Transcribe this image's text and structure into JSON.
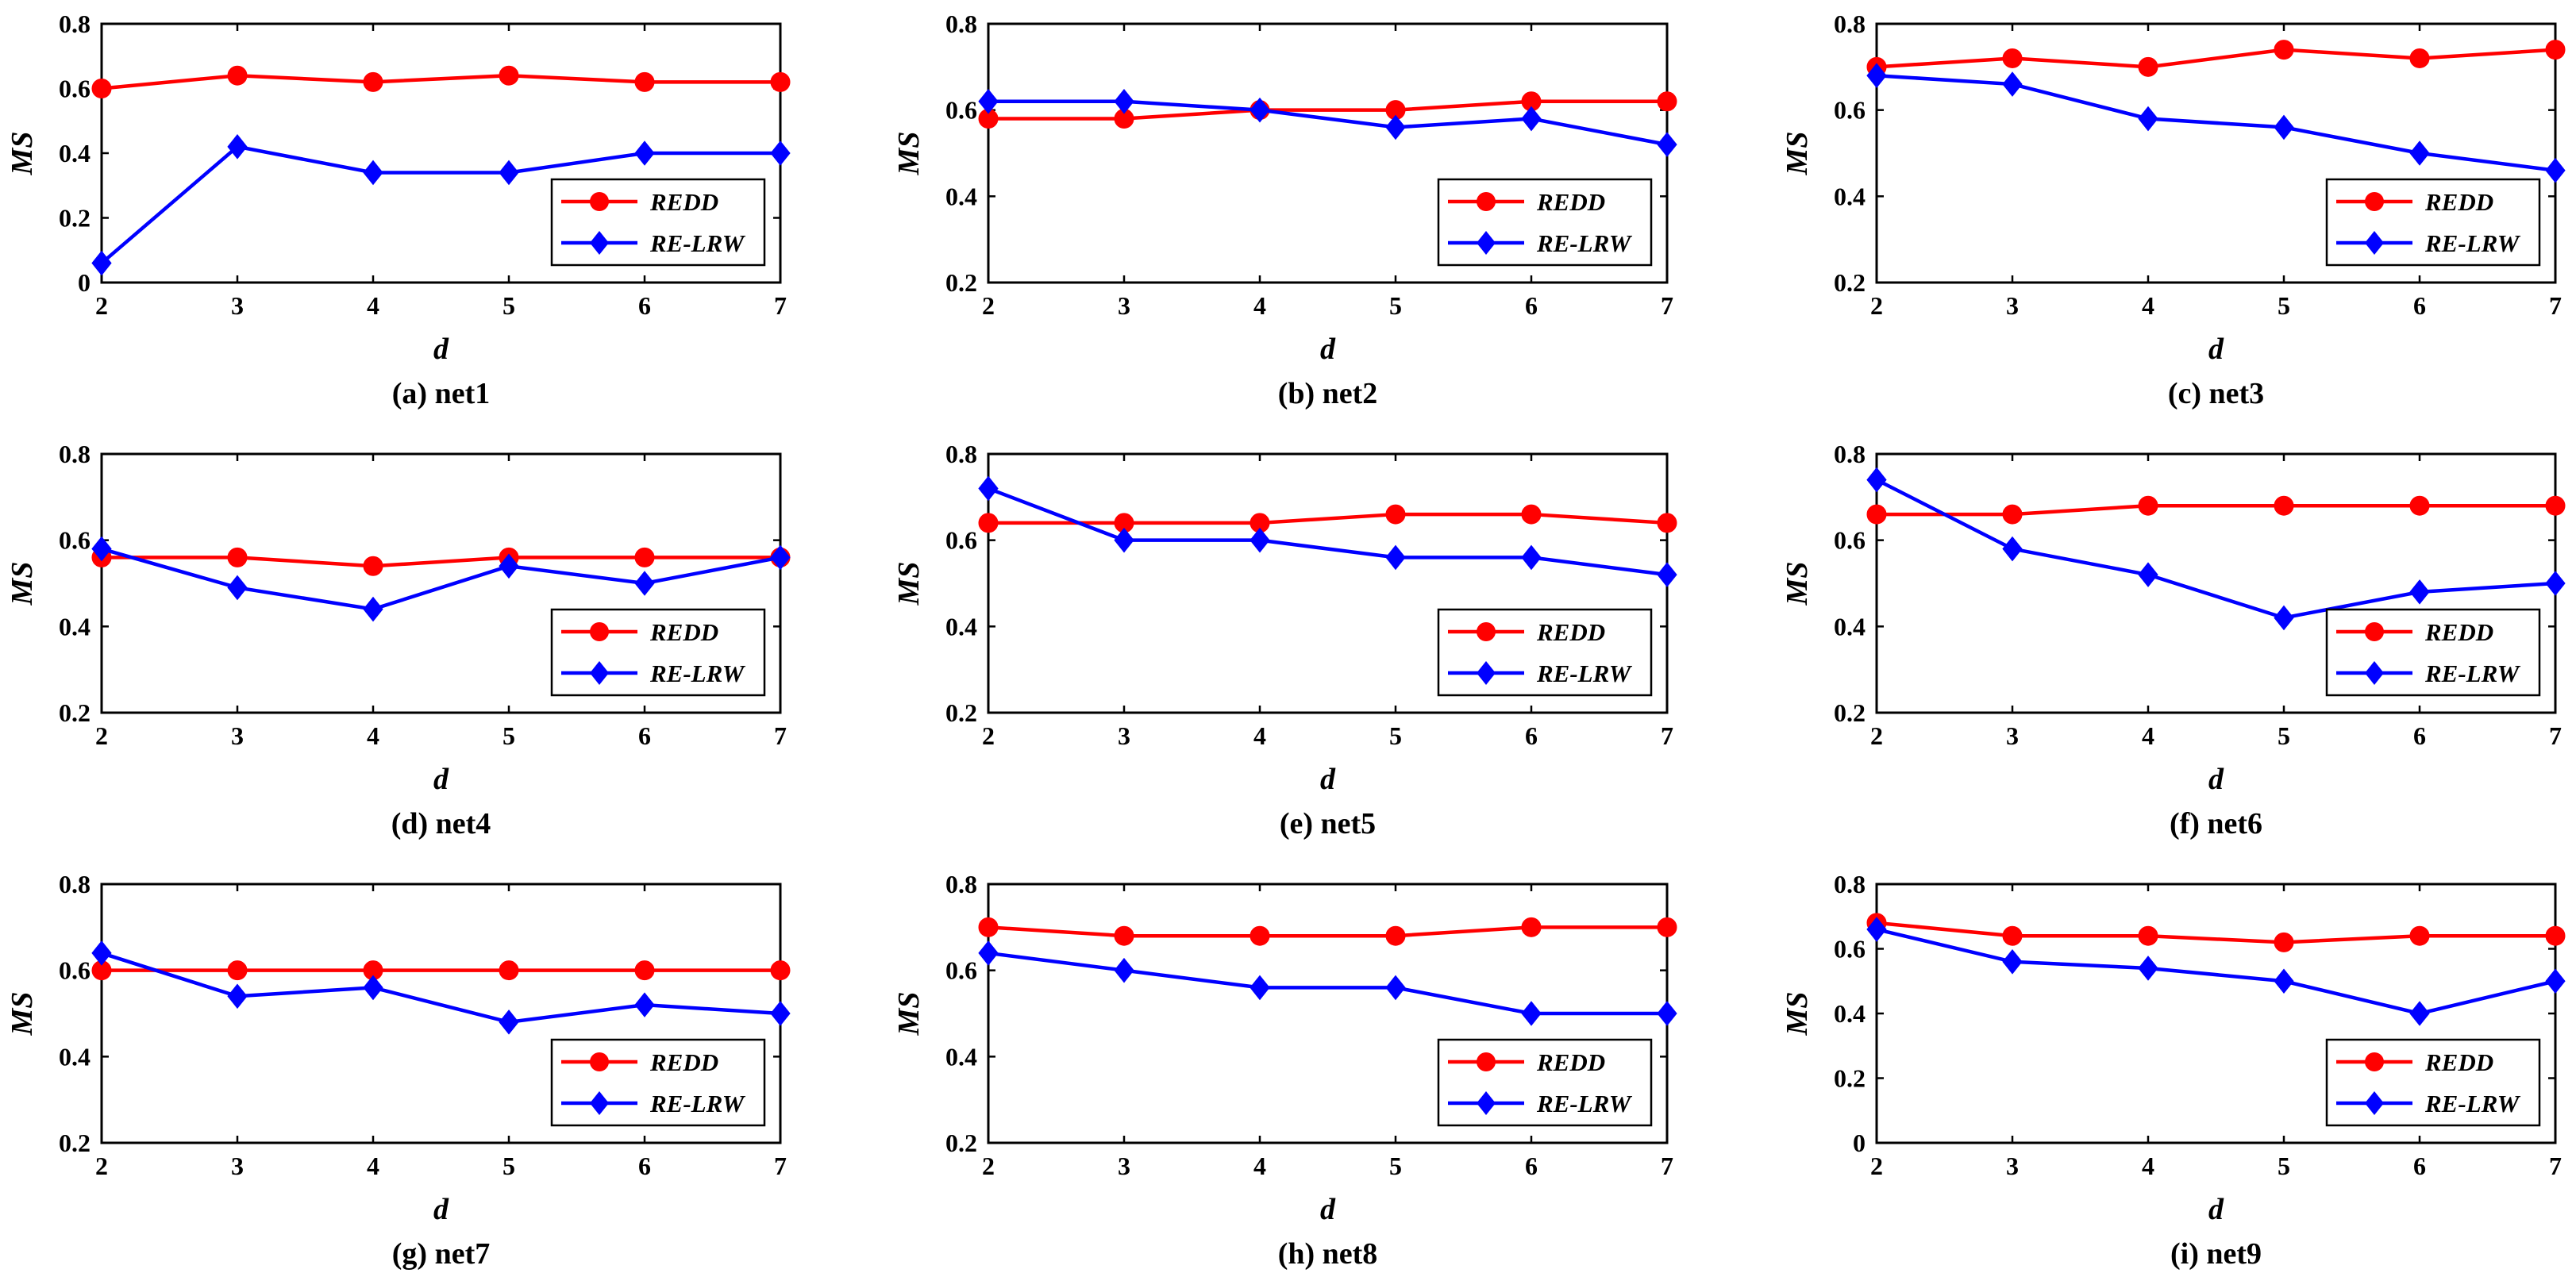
{
  "chart_data": [
    {
      "type": "line",
      "caption": "(a) net1",
      "xlabel": "d",
      "ylabel": "MS",
      "x": [
        2,
        3,
        4,
        5,
        6,
        7
      ],
      "ylim": [
        0,
        0.8
      ],
      "yticks": [
        0,
        0.2,
        0.4,
        0.6,
        0.8
      ],
      "ytick_labels": [
        "0",
        "0.2",
        "0.4",
        "0.6",
        "0.8"
      ],
      "series": [
        {
          "name": "REDD",
          "color": "#ff0000",
          "marker": "circle",
          "values": [
            0.6,
            0.64,
            0.62,
            0.64,
            0.62,
            0.62
          ]
        },
        {
          "name": "RE-LRW",
          "color": "#0000ff",
          "marker": "diamond",
          "values": [
            0.06,
            0.42,
            0.34,
            0.34,
            0.4,
            0.4
          ]
        }
      ],
      "legend": "bottom-right"
    },
    {
      "type": "line",
      "caption": "(b) net2",
      "xlabel": "d",
      "ylabel": "MS",
      "x": [
        2,
        3,
        4,
        5,
        6,
        7
      ],
      "ylim": [
        0.2,
        0.8
      ],
      "yticks": [
        0.2,
        0.4,
        0.6,
        0.8
      ],
      "ytick_labels": [
        "0.2",
        "0.4",
        "0.6",
        "0.8"
      ],
      "series": [
        {
          "name": "REDD",
          "color": "#ff0000",
          "marker": "circle",
          "values": [
            0.58,
            0.58,
            0.6,
            0.6,
            0.62,
            0.62
          ]
        },
        {
          "name": "RE-LRW",
          "color": "#0000ff",
          "marker": "diamond",
          "values": [
            0.62,
            0.62,
            0.6,
            0.56,
            0.58,
            0.52
          ]
        }
      ],
      "legend": "bottom-right"
    },
    {
      "type": "line",
      "caption": "(c) net3",
      "xlabel": "d",
      "ylabel": "MS",
      "x": [
        2,
        3,
        4,
        5,
        6,
        7
      ],
      "ylim": [
        0.2,
        0.8
      ],
      "yticks": [
        0.2,
        0.4,
        0.6,
        0.8
      ],
      "ytick_labels": [
        "0.2",
        "0.4",
        "0.6",
        "0.8"
      ],
      "series": [
        {
          "name": "REDD",
          "color": "#ff0000",
          "marker": "circle",
          "values": [
            0.7,
            0.72,
            0.7,
            0.74,
            0.72,
            0.74
          ]
        },
        {
          "name": "RE-LRW",
          "color": "#0000ff",
          "marker": "diamond",
          "values": [
            0.68,
            0.66,
            0.58,
            0.56,
            0.5,
            0.46
          ]
        }
      ],
      "legend": "bottom-right"
    },
    {
      "type": "line",
      "caption": "(d) net4",
      "xlabel": "d",
      "ylabel": "MS",
      "x": [
        2,
        3,
        4,
        5,
        6,
        7
      ],
      "ylim": [
        0.2,
        0.8
      ],
      "yticks": [
        0.2,
        0.4,
        0.6,
        0.8
      ],
      "ytick_labels": [
        "0.2",
        "0.4",
        "0.6",
        "0.8"
      ],
      "series": [
        {
          "name": "REDD",
          "color": "#ff0000",
          "marker": "circle",
          "values": [
            0.56,
            0.56,
            0.54,
            0.56,
            0.56,
            0.56
          ]
        },
        {
          "name": "RE-LRW",
          "color": "#0000ff",
          "marker": "diamond",
          "values": [
            0.58,
            0.49,
            0.44,
            0.54,
            0.5,
            0.56
          ]
        }
      ],
      "legend": "bottom-right"
    },
    {
      "type": "line",
      "caption": "(e) net5",
      "xlabel": "d",
      "ylabel": "MS",
      "x": [
        2,
        3,
        4,
        5,
        6,
        7
      ],
      "ylim": [
        0.2,
        0.8
      ],
      "yticks": [
        0.2,
        0.4,
        0.6,
        0.8
      ],
      "ytick_labels": [
        "0.2",
        "0.4",
        "0.6",
        "0.8"
      ],
      "series": [
        {
          "name": "REDD",
          "color": "#ff0000",
          "marker": "circle",
          "values": [
            0.64,
            0.64,
            0.64,
            0.66,
            0.66,
            0.64
          ]
        },
        {
          "name": "RE-LRW",
          "color": "#0000ff",
          "marker": "diamond",
          "values": [
            0.72,
            0.6,
            0.6,
            0.56,
            0.56,
            0.52
          ]
        }
      ],
      "legend": "bottom-right"
    },
    {
      "type": "line",
      "caption": "(f) net6",
      "xlabel": "d",
      "ylabel": "MS",
      "x": [
        2,
        3,
        4,
        5,
        6,
        7
      ],
      "ylim": [
        0.2,
        0.8
      ],
      "yticks": [
        0.2,
        0.4,
        0.6,
        0.8
      ],
      "ytick_labels": [
        "0.2",
        "0.4",
        "0.6",
        "0.8"
      ],
      "series": [
        {
          "name": "REDD",
          "color": "#ff0000",
          "marker": "circle",
          "values": [
            0.66,
            0.66,
            0.68,
            0.68,
            0.68,
            0.68
          ]
        },
        {
          "name": "RE-LRW",
          "color": "#0000ff",
          "marker": "diamond",
          "values": [
            0.74,
            0.58,
            0.52,
            0.42,
            0.48,
            0.5
          ]
        }
      ],
      "legend": "bottom-right"
    },
    {
      "type": "line",
      "caption": "(g) net7",
      "xlabel": "d",
      "ylabel": "MS",
      "x": [
        2,
        3,
        4,
        5,
        6,
        7
      ],
      "ylim": [
        0.2,
        0.8
      ],
      "yticks": [
        0.2,
        0.4,
        0.6,
        0.8
      ],
      "ytick_labels": [
        "0.2",
        "0.4",
        "0.6",
        "0.8"
      ],
      "series": [
        {
          "name": "REDD",
          "color": "#ff0000",
          "marker": "circle",
          "values": [
            0.6,
            0.6,
            0.6,
            0.6,
            0.6,
            0.6
          ]
        },
        {
          "name": "RE-LRW",
          "color": "#0000ff",
          "marker": "diamond",
          "values": [
            0.64,
            0.54,
            0.56,
            0.48,
            0.52,
            0.5
          ]
        }
      ],
      "legend": "bottom-right"
    },
    {
      "type": "line",
      "caption": "(h) net8",
      "xlabel": "d",
      "ylabel": "MS",
      "x": [
        2,
        3,
        4,
        5,
        6,
        7
      ],
      "ylim": [
        0.2,
        0.8
      ],
      "yticks": [
        0.2,
        0.4,
        0.6,
        0.8
      ],
      "ytick_labels": [
        "0.2",
        "0.4",
        "0.6",
        "0.8"
      ],
      "series": [
        {
          "name": "REDD",
          "color": "#ff0000",
          "marker": "circle",
          "values": [
            0.7,
            0.68,
            0.68,
            0.68,
            0.7,
            0.7
          ]
        },
        {
          "name": "RE-LRW",
          "color": "#0000ff",
          "marker": "diamond",
          "values": [
            0.64,
            0.6,
            0.56,
            0.56,
            0.5,
            0.5
          ]
        }
      ],
      "legend": "bottom-right"
    },
    {
      "type": "line",
      "caption": "(i) net9",
      "xlabel": "d",
      "ylabel": "MS",
      "x": [
        2,
        3,
        4,
        5,
        6,
        7
      ],
      "ylim": [
        0,
        0.8
      ],
      "yticks": [
        0,
        0.2,
        0.4,
        0.6,
        0.8
      ],
      "ytick_labels": [
        "0",
        "0.2",
        "0.4",
        "0.6",
        "0.8"
      ],
      "series": [
        {
          "name": "REDD",
          "color": "#ff0000",
          "marker": "circle",
          "values": [
            0.68,
            0.64,
            0.64,
            0.62,
            0.64,
            0.64
          ]
        },
        {
          "name": "RE-LRW",
          "color": "#0000ff",
          "marker": "diamond",
          "values": [
            0.66,
            0.56,
            0.54,
            0.5,
            0.4,
            0.5
          ]
        }
      ],
      "legend": "bottom-right"
    }
  ]
}
